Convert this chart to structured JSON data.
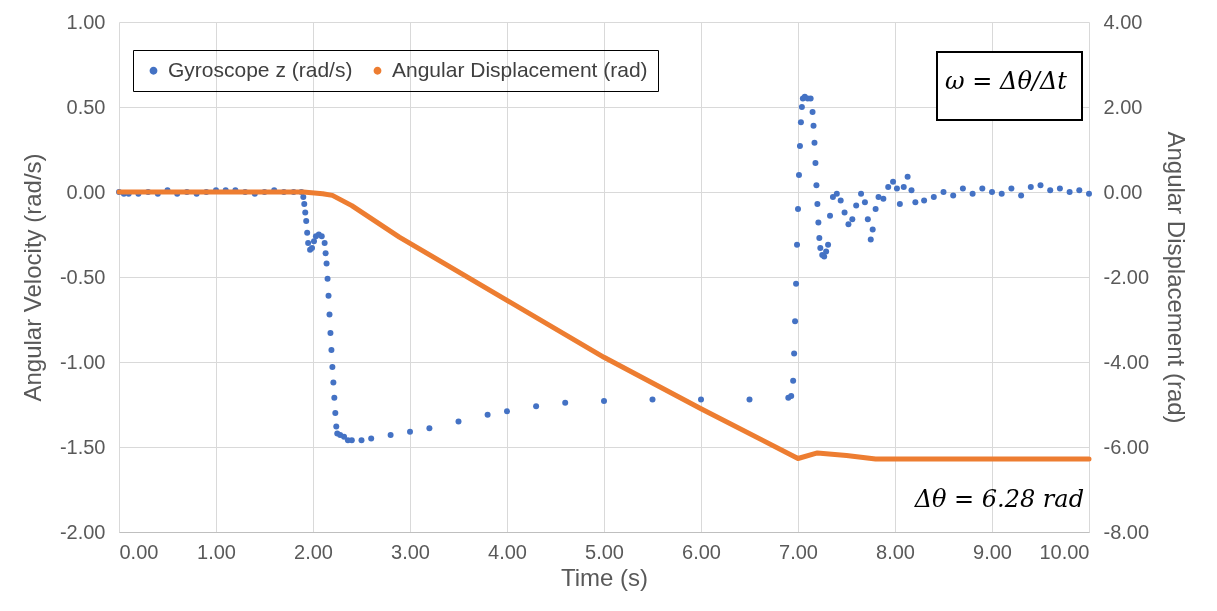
{
  "chart_data": {
    "type": "scatter",
    "xlabel": "Time (s)",
    "ylabel": "Angular Velocity (rad/s)",
    "y2label": "Angular Displacement (rad)",
    "xlim": [
      0,
      10
    ],
    "xticks": [
      {
        "value": 0,
        "label": "0.00"
      },
      {
        "value": 1,
        "label": "1.00"
      },
      {
        "value": 2,
        "label": "2.00"
      },
      {
        "value": 3,
        "label": "3.00"
      },
      {
        "value": 4,
        "label": "4.00"
      },
      {
        "value": 5,
        "label": "5.00"
      },
      {
        "value": 6,
        "label": "6.00"
      },
      {
        "value": 7,
        "label": "7.00"
      },
      {
        "value": 8,
        "label": "8.00"
      },
      {
        "value": 9,
        "label": "9.00"
      },
      {
        "value": 10,
        "label": "10.00"
      }
    ],
    "ylim": [
      -2,
      1
    ],
    "yticks": [
      {
        "value": -2,
        "label": "-2.00"
      },
      {
        "value": -1.5,
        "label": "-1.50"
      },
      {
        "value": -1,
        "label": "-1.00"
      },
      {
        "value": -0.5,
        "label": "-0.50"
      },
      {
        "value": 0,
        "label": "0.00"
      },
      {
        "value": 0.5,
        "label": "0.50"
      },
      {
        "value": 1,
        "label": "1.00"
      }
    ],
    "y2lim": [
      -8,
      4
    ],
    "y2ticks": [
      {
        "value": -8,
        "label": "-8.00"
      },
      {
        "value": -6,
        "label": "-6.00"
      },
      {
        "value": -4,
        "label": "-4.00"
      },
      {
        "value": -2,
        "label": "-2.00"
      },
      {
        "value": 0,
        "label": "0.00"
      },
      {
        "value": 2,
        "label": "2.00"
      },
      {
        "value": 4,
        "label": "4.00"
      }
    ],
    "grid": true,
    "legend": "top left",
    "marker": "circle",
    "annotations": [
      "ω = Δθ/Δt",
      "Δθ = 6.28 rad"
    ],
    "series": [
      {
        "name": "Gyroscope z (rad/s)",
        "type": "scatter",
        "color": "#4472c4",
        "x": [
          0,
          0.05,
          0.1,
          0.2,
          0.3,
          0.4,
          0.5,
          0.6,
          0.7,
          0.8,
          0.9,
          1.0,
          1.1,
          1.2,
          1.3,
          1.4,
          1.5,
          1.6,
          1.7,
          1.8,
          1.88,
          1.9,
          1.91,
          1.92,
          1.93,
          1.94,
          1.95,
          1.97,
          1.99,
          2.01,
          2.03,
          2.06,
          2.09,
          2.12,
          2.13,
          2.14,
          2.15,
          2.16,
          2.17,
          2.18,
          2.19,
          2.2,
          2.21,
          2.22,
          2.23,
          2.24,
          2.25,
          2.28,
          2.32,
          2.36,
          2.4,
          2.5,
          2.6,
          2.8,
          3.0,
          3.2,
          3.5,
          3.8,
          4.0,
          4.3,
          4.6,
          5.0,
          5.5,
          6.0,
          6.5,
          6.9,
          6.93,
          6.95,
          6.96,
          6.97,
          6.98,
          6.99,
          7.0,
          7.01,
          7.02,
          7.03,
          7.04,
          7.05,
          7.07,
          7.1,
          7.13,
          7.15,
          7.16,
          7.17,
          7.18,
          7.19,
          7.2,
          7.21,
          7.22,
          7.23,
          7.25,
          7.27,
          7.29,
          7.31,
          7.33,
          7.36,
          7.4,
          7.44,
          7.48,
          7.52,
          7.56,
          7.6,
          7.65,
          7.69,
          7.72,
          7.75,
          7.77,
          7.8,
          7.83,
          7.88,
          7.93,
          7.98,
          8.02,
          8.05,
          8.09,
          8.13,
          8.17,
          8.21,
          8.3,
          8.4,
          8.5,
          8.6,
          8.7,
          8.8,
          8.9,
          9.0,
          9.1,
          9.2,
          9.3,
          9.4,
          9.5,
          9.6,
          9.7,
          9.8,
          9.9,
          10.0
        ],
        "values": [
          0,
          -0.01,
          -0.01,
          -0.01,
          0,
          -0.01,
          0.01,
          -0.01,
          0,
          -0.01,
          0,
          0.01,
          0.01,
          0.01,
          0,
          -0.01,
          0,
          0.01,
          0,
          0,
          0,
          -0.03,
          -0.07,
          -0.12,
          -0.17,
          -0.24,
          -0.3,
          -0.34,
          -0.33,
          -0.29,
          -0.26,
          -0.25,
          -0.26,
          -0.3,
          -0.36,
          -0.42,
          -0.51,
          -0.61,
          -0.72,
          -0.83,
          -0.93,
          -1.03,
          -1.12,
          -1.21,
          -1.3,
          -1.38,
          -1.42,
          -1.43,
          -1.44,
          -1.46,
          -1.46,
          -1.46,
          -1.45,
          -1.43,
          -1.41,
          -1.39,
          -1.35,
          -1.31,
          -1.29,
          -1.26,
          -1.24,
          -1.23,
          -1.22,
          -1.22,
          -1.22,
          -1.21,
          -1.2,
          -1.11,
          -0.95,
          -0.76,
          -0.54,
          -0.31,
          -0.1,
          0.1,
          0.27,
          0.41,
          0.5,
          0.55,
          0.56,
          0.55,
          0.55,
          0.47,
          0.39,
          0.29,
          0.17,
          0.04,
          -0.07,
          -0.18,
          -0.27,
          -0.33,
          -0.37,
          -0.38,
          -0.35,
          -0.31,
          -0.14,
          -0.03,
          -0.01,
          -0.05,
          -0.12,
          -0.19,
          -0.16,
          -0.08,
          -0.01,
          -0.06,
          -0.16,
          -0.28,
          -0.22,
          -0.1,
          -0.03,
          -0.04,
          0.03,
          0.06,
          0.02,
          -0.07,
          0.03,
          0.09,
          0.01,
          -0.06,
          -0.05,
          -0.03,
          0,
          -0.02,
          0.02,
          -0.01,
          0.02,
          0,
          -0.01,
          0.02,
          -0.02,
          0.03,
          0.04,
          0.01,
          0.02,
          0,
          0.01,
          -0.01
        ]
      },
      {
        "name": "Angular Displacement (rad)",
        "type": "line",
        "axis": "y2",
        "color": "#ed7d31",
        "marker": "none",
        "x": [
          0,
          1.9,
          2.1,
          2.2,
          2.4,
          2.89,
          4.0,
          5.0,
          6.0,
          7.0,
          7.2,
          7.5,
          7.8,
          10.0
        ],
        "values": [
          0,
          0,
          -0.04,
          -0.08,
          -0.32,
          -1.06,
          -2.55,
          -3.89,
          -5.1,
          -6.27,
          -6.14,
          -6.2,
          -6.28,
          -6.28
        ]
      }
    ]
  }
}
